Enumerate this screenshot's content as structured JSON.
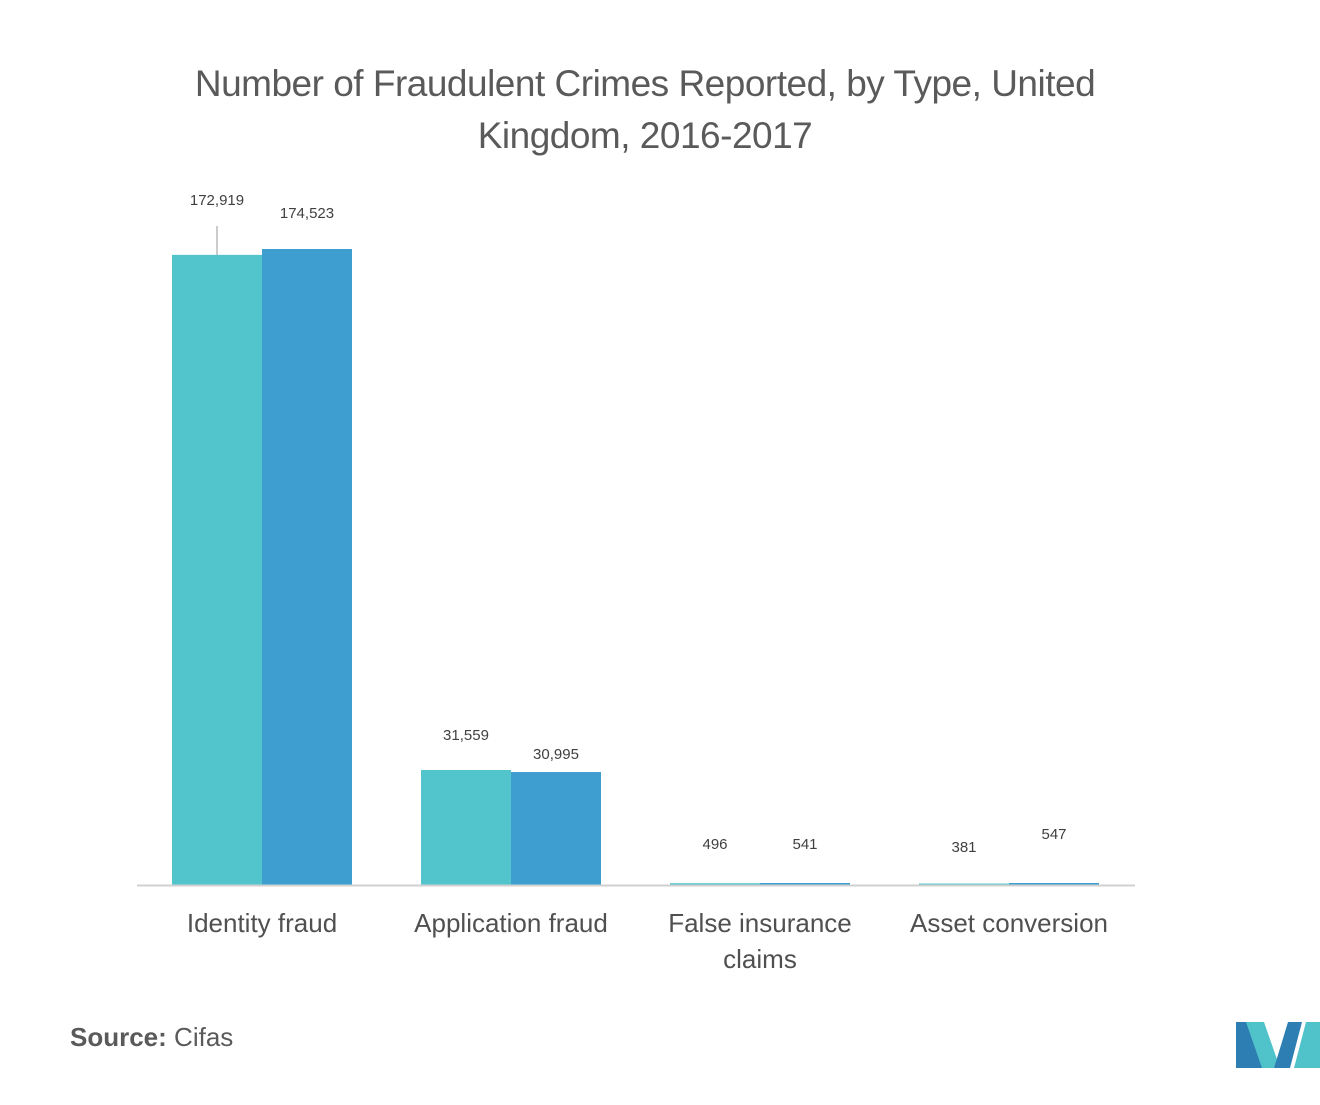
{
  "chart_data": {
    "type": "bar",
    "title": "Number of Fraudulent Crimes Reported, by Type, United Kingdom, 2016-2017",
    "categories": [
      "Identity fraud",
      "Application fraud",
      "False insurance claims",
      "Asset conversion"
    ],
    "category_label_lines": [
      [
        "Identity fraud"
      ],
      [
        "Application fraud"
      ],
      [
        "False insurance",
        "claims"
      ],
      [
        "Asset conversion"
      ]
    ],
    "series": [
      {
        "values": [
          172919,
          31559,
          496,
          381
        ],
        "labels": [
          "172,919",
          "31,559",
          "496",
          "381"
        ],
        "color": "#52c4cb"
      },
      {
        "values": [
          174523,
          30995,
          541,
          547
        ],
        "labels": [
          "174,523",
          "30,995",
          "541",
          "547"
        ],
        "color": "#3d9ecf"
      }
    ],
    "ylim": [
      0,
      174523
    ],
    "xlabel": "",
    "ylabel": "",
    "grid": false,
    "legend": "none",
    "axis_color": "#d0d0d0"
  },
  "source": {
    "label": "Source:",
    "value": "Cifas"
  },
  "logo": {
    "colors": [
      "#2d7fb3",
      "#4fc3c9"
    ]
  }
}
